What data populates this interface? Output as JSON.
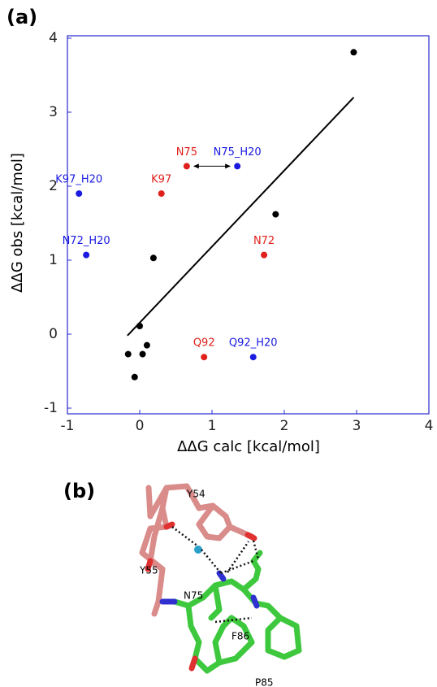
{
  "panels": [
    "(a)",
    "(b)"
  ],
  "chart_data": {
    "type": "scatter",
    "x_label": "ΔΔG calc [kcal/mol]",
    "y_label": "ΔΔG obs [kcal/mol]",
    "xlim": [
      -1,
      4
    ],
    "ylim": [
      -1,
      4
    ],
    "xticks": [
      -1,
      0,
      1,
      2,
      3,
      4
    ],
    "yticks": [
      -1,
      0,
      1,
      2,
      3,
      4
    ],
    "frame_color": "#2a2ad0",
    "series": [
      {
        "color": "#000000",
        "x": [
          2.96,
          1.88,
          0.19,
          0.0,
          -0.16,
          0.1,
          0.04,
          -0.07
        ],
        "values": [
          3.81,
          1.62,
          1.03,
          0.11,
          -0.27,
          -0.15,
          -0.27,
          -0.58
        ]
      },
      {
        "color": "#e0201a",
        "x": [
          0.65,
          0.3,
          1.72,
          0.89
        ],
        "values": [
          2.27,
          1.9,
          1.07,
          -0.31
        ],
        "labels": [
          "N75",
          "K97",
          "N72",
          "Q92"
        ]
      },
      {
        "color": "#1a1ae0",
        "x": [
          1.35,
          -0.84,
          -0.74,
          1.57
        ],
        "values": [
          2.27,
          1.9,
          1.07,
          -0.31
        ],
        "labels": [
          "N75_H20",
          "K97_H20",
          "N72_H20",
          "Q92_H20"
        ]
      }
    ],
    "fit_line": {
      "x": [
        -0.17,
        2.96
      ],
      "values": [
        -0.02,
        3.2
      ]
    }
  },
  "structure_labels": [
    "Y54",
    "Y55",
    "N75",
    "F86",
    "P85"
  ]
}
